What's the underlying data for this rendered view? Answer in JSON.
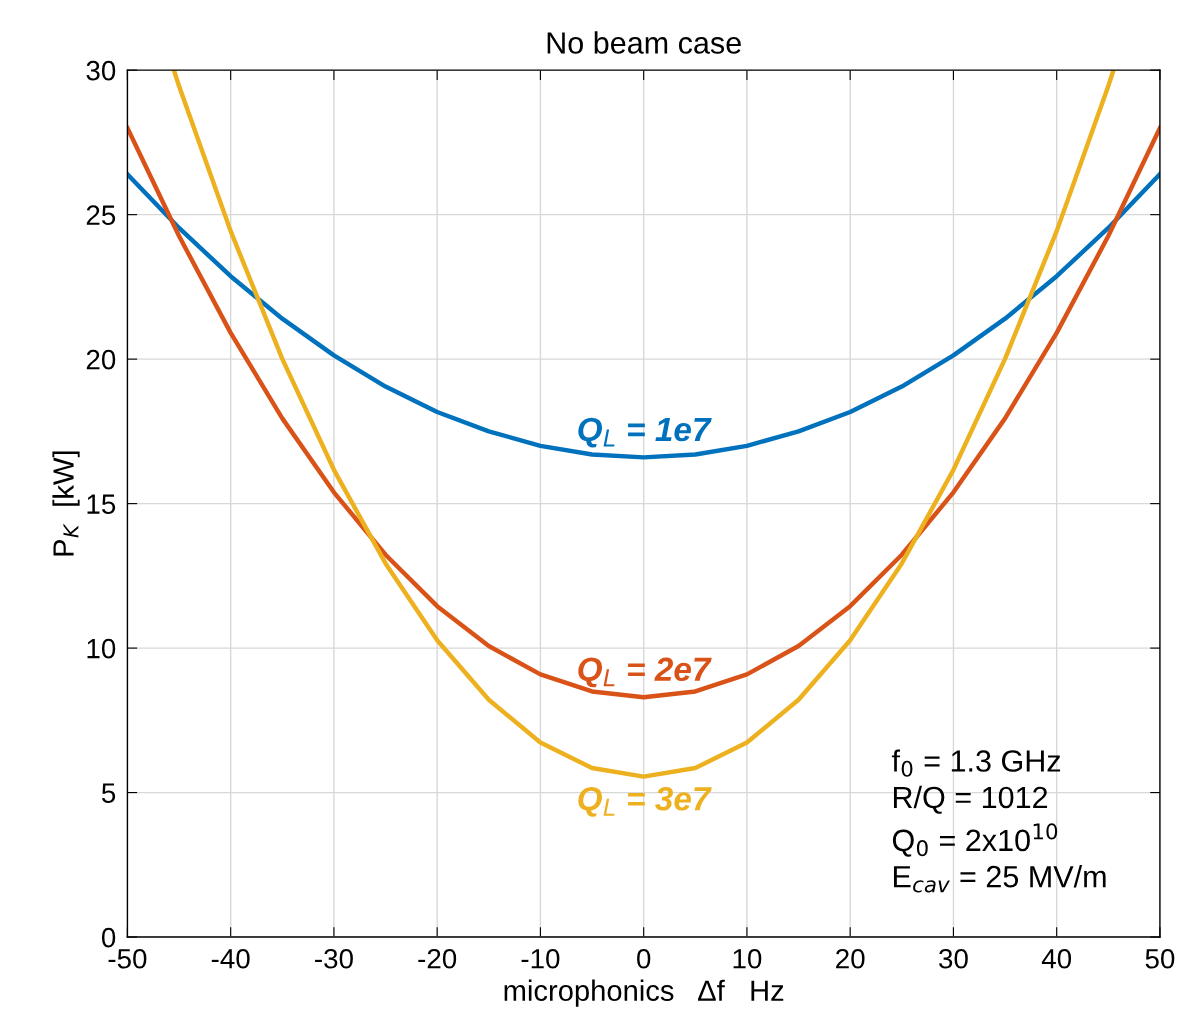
{
  "chart_data": {
    "type": "line",
    "title": "No beam case",
    "xlabel": "microphonics   Δf   Hz",
    "ylabel": "P$_{K}$  [kW]",
    "x": [
      -50,
      -45,
      -40,
      -35,
      -30,
      -25,
      -20,
      -15,
      -10,
      -5,
      0,
      5,
      10,
      15,
      20,
      25,
      30,
      35,
      40,
      45,
      50
    ],
    "series": [
      {
        "name": "Q$_{L}$ = 1e7",
        "color": "#0072bd",
        "values": [
          26.4,
          24.54,
          22.87,
          21.4,
          20.13,
          19.05,
          18.17,
          17.5,
          17.0,
          16.7,
          16.6,
          16.7,
          17.0,
          17.5,
          18.17,
          19.05,
          20.13,
          21.4,
          22.87,
          24.54,
          26.4
        ]
      },
      {
        "name": "Q$_{L}$ = 2e7",
        "color": "#d95319",
        "values": [
          28.0,
          24.26,
          20.91,
          17.95,
          15.39,
          13.23,
          11.45,
          10.07,
          9.09,
          8.5,
          8.3,
          8.5,
          9.09,
          10.07,
          11.45,
          13.23,
          15.39,
          17.95,
          20.91,
          24.26,
          28.0
        ]
      },
      {
        "name": "Q$_{L}$ = 3e7",
        "color": "#edb120",
        "x": [
          -45.5,
          -45,
          -40,
          -35,
          -30,
          -25,
          -20,
          -15,
          -10,
          -5,
          0,
          5,
          10,
          15,
          20,
          25,
          30,
          35,
          40,
          45,
          45.5
        ],
        "values": [
          30,
          29.45,
          24.43,
          20.01,
          16.17,
          12.93,
          10.27,
          8.21,
          6.73,
          5.85,
          5.55,
          5.85,
          6.73,
          8.21,
          10.27,
          12.93,
          16.17,
          20.01,
          24.43,
          29.45,
          30
        ]
      }
    ],
    "annotations": [
      "f$_{0}$ = 1.3 GHz\nR/Q = 1012\nQ$_{0}$ = 2x10$^{10}$\nE$_{cav}$ = 25 MV/m"
    ],
    "xlim": [
      -50,
      50
    ],
    "ylim": [
      0,
      30
    ],
    "xticks": [
      -50,
      -40,
      -30,
      -20,
      -10,
      0,
      10,
      20,
      30,
      40,
      50
    ],
    "yticks": [
      0,
      5,
      10,
      15,
      20,
      25,
      30
    ],
    "grid": true,
    "marker": "none",
    "line_style": "solid"
  }
}
